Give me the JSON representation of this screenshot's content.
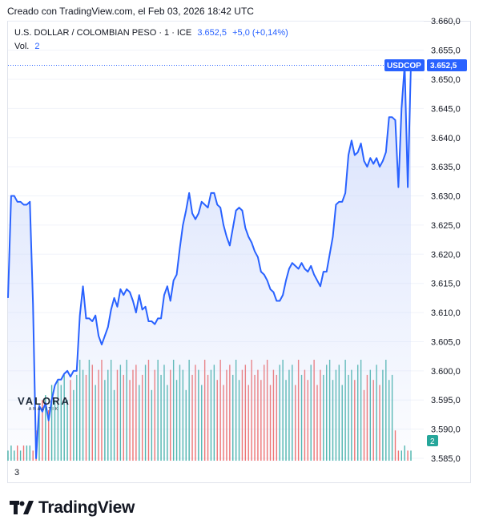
{
  "header": {
    "caption": "Creado con TradingView.com, el Feb 03, 2026 18:42 UTC"
  },
  "legend": {
    "symbol": "U.S. DOLLAR / COLOMBIAN PESO · 1 · ICE",
    "last": "3.652,5",
    "change": "+5,0 (+0,14%)",
    "vol_label": "Vol.",
    "vol_value": "2"
  },
  "watermark": {
    "name": "VALORA",
    "sub": "ANALITIK"
  },
  "footer": {
    "bottom_number": "3",
    "brand": "TradingView"
  },
  "colors": {
    "line": "#2962ff",
    "area_top": "#c9d6fb",
    "up": "#26a69a",
    "down": "#ef5350",
    "price_label_bg": "#2962ff"
  },
  "chart_data": {
    "type": "area",
    "ticker": "USDCOP",
    "last_price_label": "3.652,5",
    "volume_label": "2",
    "ylim": [
      3585.0,
      3657.0
    ],
    "yticks": [
      3585.0,
      3590.0,
      3595.0,
      3600.0,
      3605.0,
      3610.0,
      3615.0,
      3620.0,
      3625.0,
      3630.0,
      3635.0,
      3640.0,
      3645.0,
      3650.0,
      3655.0,
      3660.0
    ],
    "ytick_labels": [
      "3.585,0",
      "3.590,0",
      "3.595,0",
      "3.600,0",
      "3.605,0",
      "3.610,0",
      "3.615,0",
      "3.620,0",
      "3.625,0",
      "3.630,0",
      "3.635,0",
      "3.640,0",
      "3.645,0",
      "3.650,0",
      "3.655,0",
      "3.660,0"
    ],
    "series": [
      {
        "values": [
          3612.5,
          3630.0,
          3630.0,
          3629.0,
          3629.0,
          3628.5,
          3628.5,
          3629.0,
          3611.5,
          3585.0,
          3594.0,
          3593.0,
          3594.5,
          3591.5,
          3595.0,
          3597.5,
          3598.5,
          3598.5,
          3599.5,
          3600.0,
          3599.0,
          3600.0,
          3600.0,
          3609.5,
          3614.5,
          3609.0,
          3609.0,
          3608.5,
          3609.5,
          3606.0,
          3604.5,
          3606.0,
          3607.5,
          3610.5,
          3612.5,
          3611.0,
          3614.0,
          3613.0,
          3614.0,
          3613.5,
          3612.0,
          3610.0,
          3613.0,
          3610.5,
          3611.0,
          3608.5,
          3608.5,
          3608.0,
          3609.0,
          3609.0,
          3613.0,
          3614.5,
          3612.0,
          3615.5,
          3616.5,
          3621.0,
          3625.0,
          3627.5,
          3630.5,
          3627.0,
          3626.0,
          3627.0,
          3629.0,
          3628.5,
          3628.0,
          3630.5,
          3630.5,
          3628.5,
          3628.0,
          3625.0,
          3623.0,
          3621.5,
          3624.5,
          3627.5,
          3628.0,
          3627.5,
          3624.5,
          3623.0,
          3622.0,
          3620.5,
          3619.5,
          3617.0,
          3616.5,
          3615.5,
          3614.0,
          3613.5,
          3612.0,
          3612.0,
          3613.0,
          3615.5,
          3617.5,
          3618.5,
          3618.0,
          3617.5,
          3618.5,
          3617.5,
          3617.0,
          3618.0,
          3616.5,
          3615.5,
          3614.5,
          3617.0,
          3617.0,
          3620.0,
          3623.0,
          3628.5,
          3629.0,
          3629.0,
          3630.5,
          3637.0,
          3639.5,
          3637.0,
          3637.5,
          3639.0,
          3636.0,
          3635.0,
          3636.5,
          3635.5,
          3636.5,
          3635.0,
          3636.0,
          3637.5,
          3643.5,
          3643.5,
          3643.0,
          3631.5,
          3645.0,
          3652.5,
          3631.5,
          3652.5
        ],
        "volumes": [
          2,
          3,
          2,
          3,
          2,
          3,
          3,
          3,
          2,
          6,
          11,
          12,
          13,
          10,
          15,
          12,
          16,
          15,
          17,
          12,
          16,
          14,
          17,
          20,
          18,
          17,
          20,
          19,
          15,
          18,
          20,
          16,
          18,
          20,
          14,
          18,
          19,
          17,
          20,
          16,
          18,
          19,
          15,
          17,
          19,
          20,
          14,
          18,
          20,
          17,
          19,
          15,
          18,
          20,
          16,
          19,
          18,
          14,
          20,
          17,
          19,
          18,
          15,
          20,
          17,
          18,
          19,
          16,
          20,
          15,
          18,
          19,
          17,
          20,
          16,
          18,
          19,
          15,
          20,
          17,
          18,
          16,
          19,
          20,
          15,
          18,
          17,
          19,
          20,
          16,
          18,
          19,
          15,
          20,
          17,
          18,
          16,
          19,
          20,
          15,
          18,
          17,
          19,
          20,
          16,
          18,
          19,
          15,
          20,
          17,
          18,
          16,
          19,
          20,
          14,
          17,
          18,
          16,
          19,
          15,
          18,
          20,
          16,
          17,
          6,
          2,
          2,
          3,
          2,
          2
        ]
      }
    ]
  }
}
